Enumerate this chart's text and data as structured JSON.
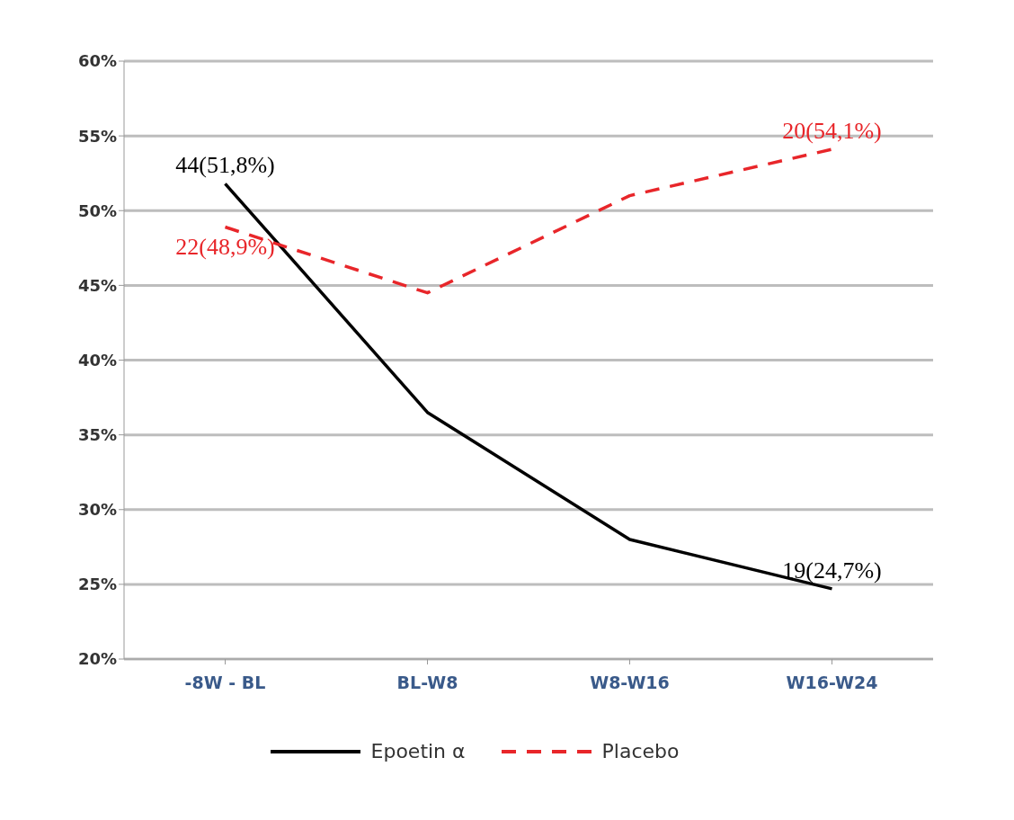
{
  "chart_data": {
    "type": "line",
    "categories": [
      "-8W - BL",
      "BL-W8",
      "W8-W16",
      "W16-W24"
    ],
    "series": [
      {
        "name": "Epoetin α",
        "color": "#000000",
        "values": [
          51.8,
          36.5,
          28,
          24.7
        ],
        "line_style": "solid"
      },
      {
        "name": "Placebo",
        "color": "#e8262a",
        "values": [
          48.9,
          44.5,
          51,
          54.1
        ],
        "line_style": "dashed"
      }
    ],
    "ylim": [
      20,
      60
    ],
    "yticks": [
      {
        "value": 20,
        "label": "20%"
      },
      {
        "value": 25,
        "label": "25%"
      },
      {
        "value": 30,
        "label": "30%"
      },
      {
        "value": 35,
        "label": "35%"
      },
      {
        "value": 40,
        "label": "40%"
      },
      {
        "value": 45,
        "label": "45%"
      },
      {
        "value": 50,
        "label": "50%"
      },
      {
        "value": 55,
        "label": "55%"
      },
      {
        "value": 60,
        "label": "60%"
      }
    ],
    "grid": "y",
    "legend": "bottom",
    "marker": "none",
    "annotations": [
      {
        "text": "44(51,8%)",
        "x": "-8W - BL",
        "y": 51.8
      },
      {
        "text": "22(48,9%)",
        "x": "-8W - BL",
        "y": 48.9
      },
      {
        "text": "19(24,7%)",
        "x": "W16-W24",
        "y": 24.7
      },
      {
        "text": "20(54,1%)",
        "x": "W16-W24",
        "y": 54.1
      }
    ]
  }
}
